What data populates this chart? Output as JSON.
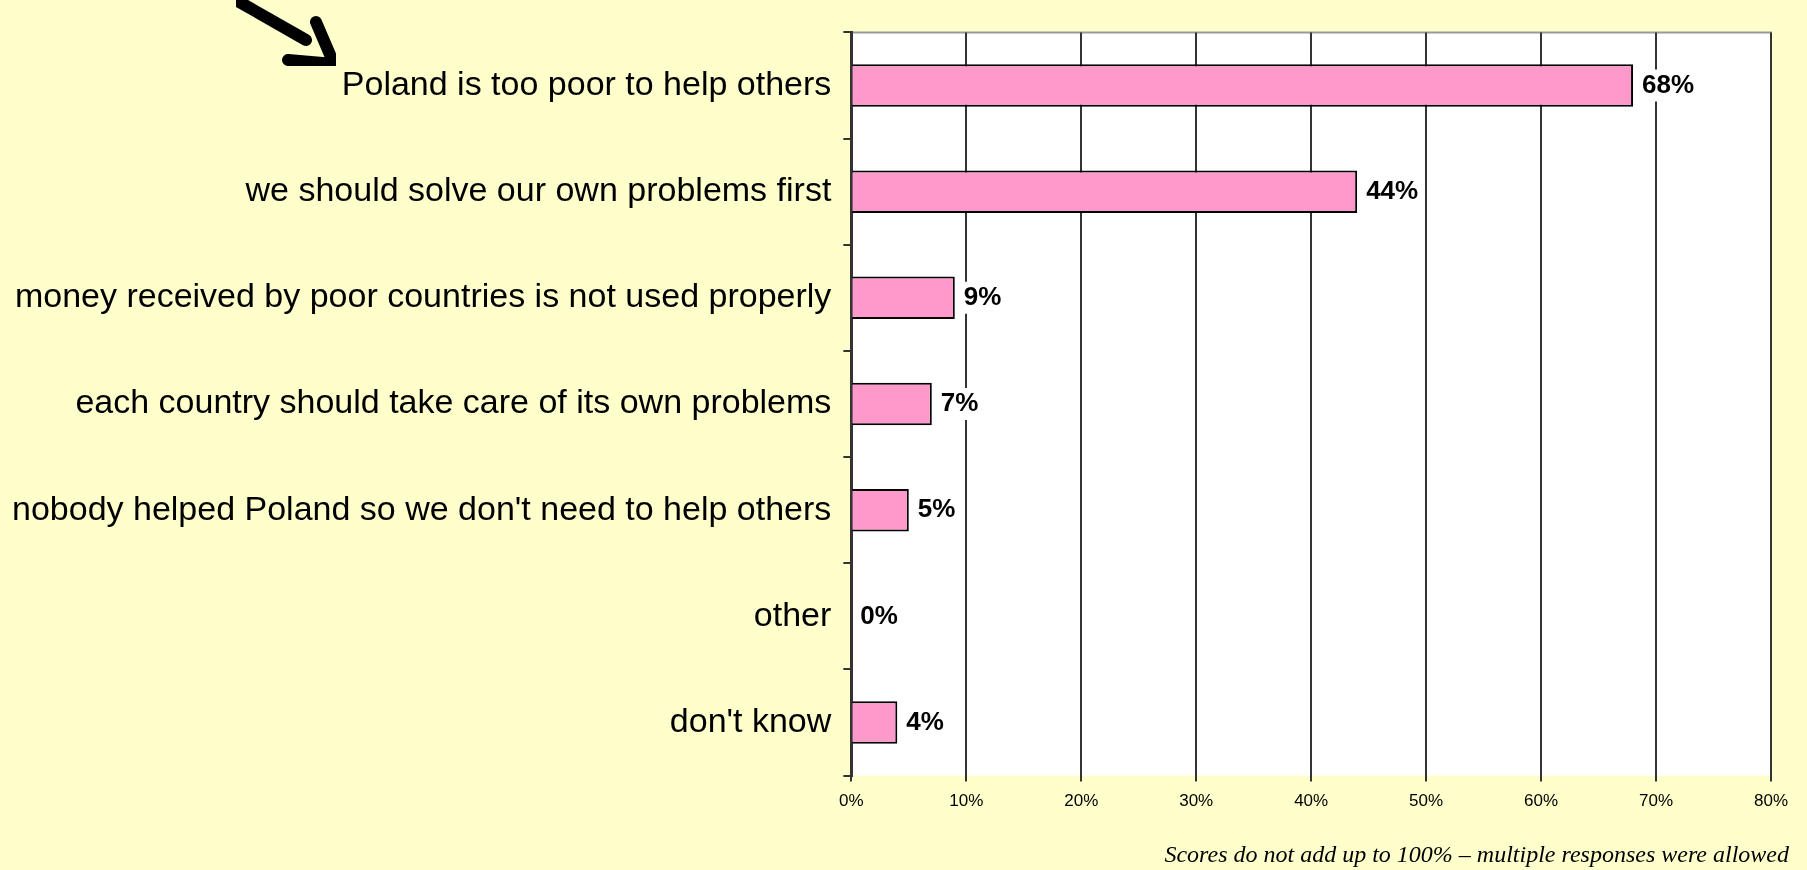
{
  "chart_data": {
    "type": "bar",
    "orientation": "horizontal",
    "categories": [
      "Poland is too poor to help others",
      "we should solve our own problems first",
      "money received by poor countries is not used properly",
      "each country should take care of its own problems",
      "nobody helped Poland so we don't need to help others",
      "other",
      "don't know"
    ],
    "values": [
      68,
      44,
      9,
      7,
      5,
      0,
      4
    ],
    "value_labels": [
      "68%",
      "44%",
      "9%",
      "7%",
      "5%",
      "0%",
      "4%"
    ],
    "color": "#ff99cc",
    "xlim": [
      0,
      80
    ],
    "xticks": [
      {
        "value": 0,
        "label": "0%"
      },
      {
        "value": 10,
        "label": "10%"
      },
      {
        "value": 20,
        "label": "20%"
      },
      {
        "value": 30,
        "label": "30%"
      },
      {
        "value": 40,
        "label": "40%"
      },
      {
        "value": 50,
        "label": "50%"
      },
      {
        "value": 60,
        "label": "60%"
      },
      {
        "value": 70,
        "label": "70%"
      },
      {
        "value": 80,
        "label": "80%"
      }
    ],
    "grid": "x",
    "legend": false,
    "annotations": [
      "Scores do not add up to 100% – multiple responses were allowed"
    ]
  }
}
